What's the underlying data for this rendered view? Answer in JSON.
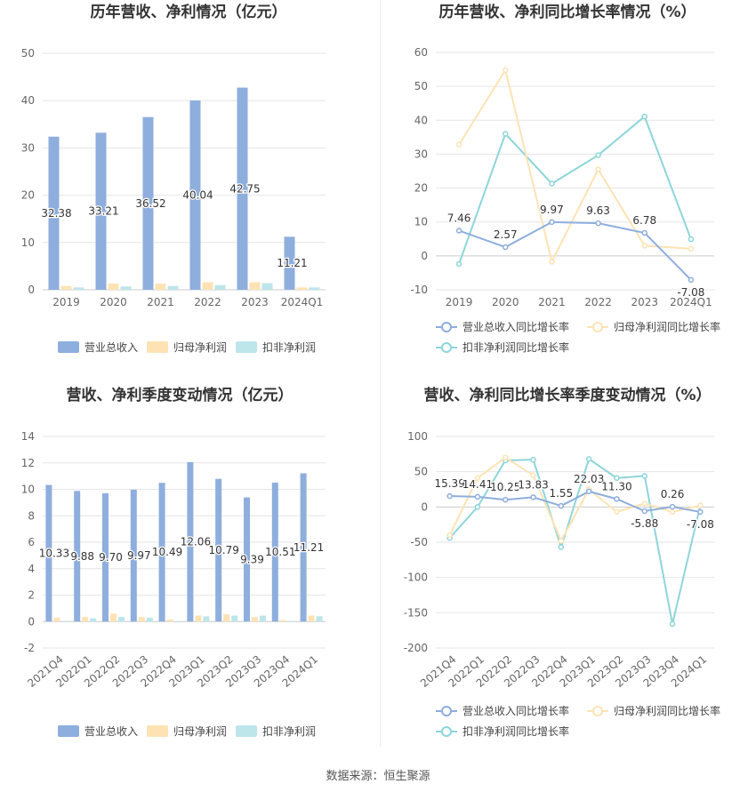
{
  "source_label": "数据来源：恒生聚源",
  "colors": {
    "revenue": "#8eaedd",
    "net_profit": "#fde3b4",
    "deducted_profit": "#bde6ea",
    "revenue_line": "#8eaedd",
    "net_profit_line": "#fde3b4",
    "deducted_profit_line": "#8ed5da"
  },
  "chart_data": [
    {
      "type": "bar",
      "title": "历年营收、净利情况（亿元）",
      "categories": [
        "2019",
        "2020",
        "2021",
        "2022",
        "2023",
        "2024Q1"
      ],
      "ylim": [
        0,
        50
      ],
      "yticks": [
        "0",
        "10",
        "20",
        "30",
        "40",
        "50"
      ],
      "series": [
        {
          "name": "营业总收入",
          "values": [
            32.38,
            33.21,
            36.52,
            40.04,
            42.75,
            11.21
          ],
          "labels": [
            "32.38",
            "33.21",
            "36.52",
            "40.04",
            "42.75",
            "11.21"
          ]
        },
        {
          "name": "归母净利润",
          "values": [
            0.8,
            1.3,
            1.3,
            1.6,
            1.6,
            0.5
          ]
        },
        {
          "name": "扣非净利润",
          "values": [
            0.5,
            0.7,
            0.8,
            1.0,
            1.4,
            0.5
          ]
        }
      ],
      "legend": "bottom",
      "grid": true
    },
    {
      "type": "line",
      "title": "历年营收、净利同比增长率情况（%）",
      "categories": [
        "2019",
        "2020",
        "2021",
        "2022",
        "2023",
        "2024Q1"
      ],
      "ylim": [
        -10,
        60
      ],
      "yticks": [
        "-10",
        "0",
        "10",
        "20",
        "30",
        "40",
        "50",
        "60"
      ],
      "series": [
        {
          "name": "营业总收入同比增长率",
          "values": [
            7.46,
            2.57,
            9.97,
            9.63,
            6.78,
            -7.08
          ],
          "labels": [
            "7.46",
            "2.57",
            "9.97",
            "9.63",
            "6.78",
            "-7.08"
          ]
        },
        {
          "name": "归母净利润同比增长率",
          "values": [
            32.8,
            54.8,
            -1.7,
            25.5,
            3.0,
            2.1
          ]
        },
        {
          "name": "扣非净利润同比增长率",
          "values": [
            -2.4,
            36.0,
            21.3,
            29.7,
            41.1,
            4.9
          ]
        }
      ],
      "legend": "bottom",
      "grid": true
    },
    {
      "type": "bar",
      "title": "营收、净利季度变动情况（亿元）",
      "categories": [
        "2021Q4",
        "2022Q1",
        "2022Q2",
        "2022Q3",
        "2022Q4",
        "2023Q1",
        "2023Q2",
        "2023Q3",
        "2023Q4",
        "2024Q1"
      ],
      "ylim": [
        -2,
        14
      ],
      "yticks": [
        "-2",
        "0",
        "2",
        "4",
        "6",
        "8",
        "10",
        "12",
        "14"
      ],
      "series": [
        {
          "name": "营业总收入",
          "values": [
            10.33,
            9.88,
            9.7,
            9.97,
            10.49,
            12.06,
            10.79,
            9.39,
            10.51,
            11.21
          ],
          "labels": [
            "10.33",
            "9.88",
            "9.70",
            "9.97",
            "10.49",
            "12.06",
            "10.79",
            "9.39",
            "10.51",
            "11.21"
          ]
        },
        {
          "name": "归母净利润",
          "values": [
            0.3,
            0.35,
            0.6,
            0.35,
            0.15,
            0.45,
            0.55,
            0.35,
            0.1,
            0.45
          ]
        },
        {
          "name": "扣非净利润",
          "values": [
            0.05,
            0.25,
            0.35,
            0.3,
            -0.05,
            0.4,
            0.45,
            0.45,
            0.05,
            0.4
          ]
        }
      ],
      "legend": "bottom",
      "grid": true
    },
    {
      "type": "line",
      "title": "营收、净利同比增长率季度变动情况（%）",
      "categories": [
        "2021Q4",
        "2022Q1",
        "2022Q2",
        "2022Q3",
        "2022Q4",
        "2023Q1",
        "2023Q2",
        "2023Q3",
        "2023Q4",
        "2024Q1"
      ],
      "ylim": [
        -200,
        100
      ],
      "yticks": [
        "-200",
        "-150",
        "-100",
        "-50",
        "0",
        "50",
        "100"
      ],
      "series": [
        {
          "name": "营业总收入同比增长率",
          "values": [
            15.39,
            14.41,
            10.25,
            13.83,
            1.55,
            22.03,
            11.3,
            -5.88,
            0.26,
            -7.08
          ],
          "labels": [
            "15.39",
            "14.41",
            "10.25",
            "13.83",
            "1.55",
            "22.03",
            "11.30",
            "-5.88",
            "0.26",
            "-7.08"
          ]
        },
        {
          "name": "归母净利润同比增长率",
          "values": [
            -40,
            41,
            70,
            45,
            -48,
            25,
            -7,
            5,
            -7,
            2
          ]
        },
        {
          "name": "扣非净利润同比增长率",
          "values": [
            -44,
            0,
            66,
            67,
            -57,
            68,
            41,
            44,
            -166,
            2
          ]
        }
      ],
      "legend": "bottom",
      "grid": true
    }
  ]
}
